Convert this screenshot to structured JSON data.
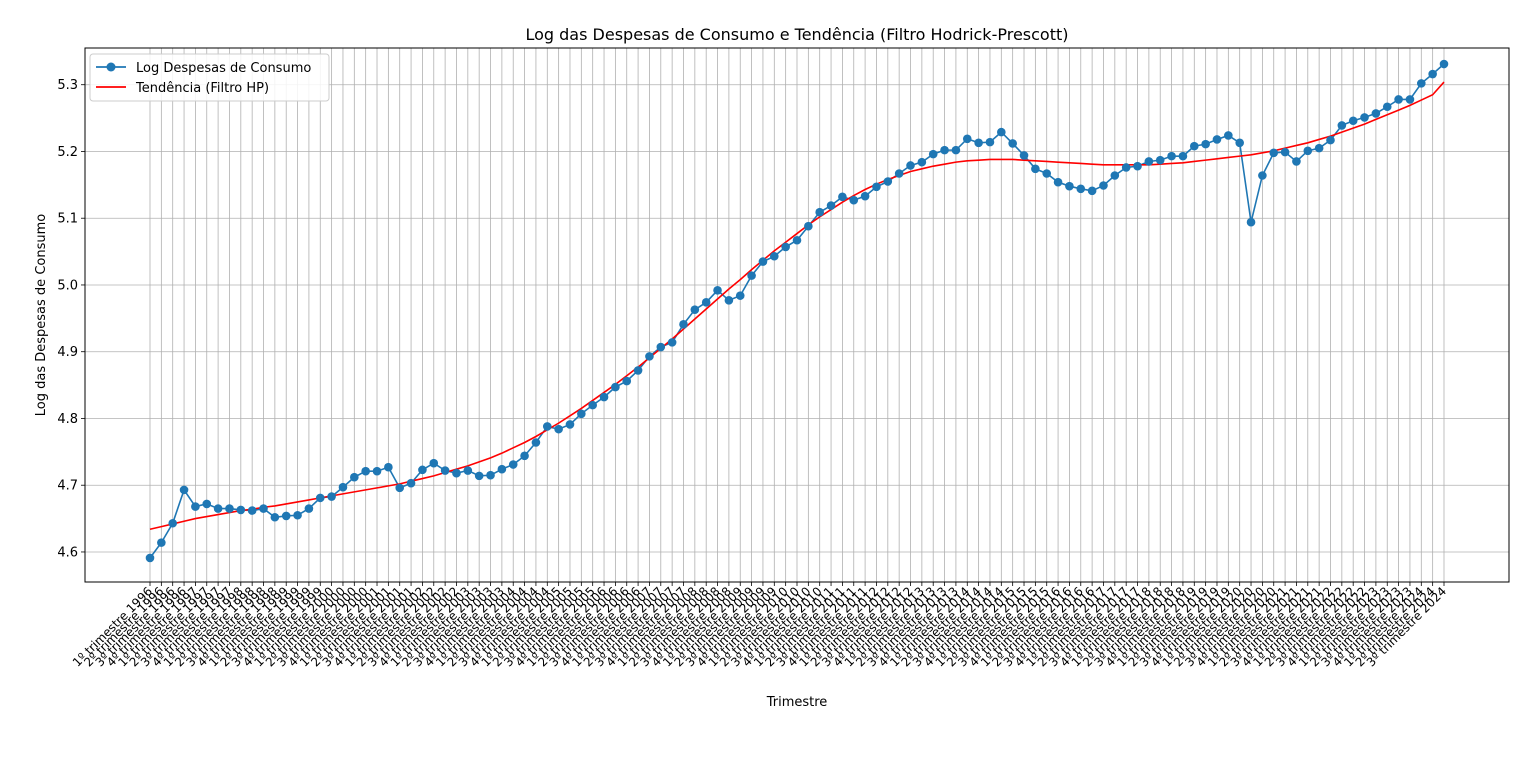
{
  "chart_data": {
    "type": "line",
    "title": "Log das Despesas de Consumo e Tendência (Filtro Hodrick-Prescott)",
    "xlabel": "Trimestre",
    "ylabel": "Log das Despesas de Consumo",
    "ylim": [
      4.555,
      5.355
    ],
    "yticks": [
      4.6,
      4.7,
      4.8,
      4.9,
      5.0,
      5.1,
      5.2,
      5.3
    ],
    "grid": true,
    "legend_position": "top-left",
    "x_start": "1º trimestre 1996",
    "x_end": "3º trimestre 2024",
    "quarter_labels": [
      "1º trimestre",
      "2º trimestre",
      "3º trimestre",
      "4º trimestre"
    ],
    "start_year": 1996,
    "series": [
      {
        "name": "Log Despesas de Consumo",
        "color": "#1f77b4",
        "marker": "circle",
        "values": [
          4.591,
          4.614,
          4.643,
          4.693,
          4.668,
          4.672,
          4.665,
          4.665,
          4.663,
          4.662,
          4.665,
          4.652,
          4.654,
          4.655,
          4.665,
          4.681,
          4.683,
          4.697,
          4.712,
          4.721,
          4.721,
          4.727,
          4.696,
          4.703,
          4.723,
          4.733,
          4.722,
          4.718,
          4.722,
          4.714,
          4.715,
          4.724,
          4.731,
          4.744,
          4.764,
          4.788,
          4.784,
          4.791,
          4.807,
          4.82,
          4.832,
          4.847,
          4.856,
          4.872,
          4.893,
          4.907,
          4.914,
          4.941,
          4.963,
          4.974,
          4.992,
          4.977,
          4.984,
          5.014,
          5.035,
          5.043,
          5.057,
          5.067,
          5.088,
          5.109,
          5.119,
          5.132,
          5.127,
          5.133,
          5.147,
          5.155,
          5.167,
          5.179,
          5.184,
          5.196,
          5.202,
          5.202,
          5.219,
          5.213,
          5.214,
          5.229,
          5.212,
          5.194,
          5.174,
          5.167,
          5.154,
          5.148,
          5.144,
          5.141,
          5.149,
          5.164,
          5.176,
          5.178,
          5.185,
          5.187,
          5.193,
          5.193,
          5.208,
          5.211,
          5.218,
          5.224,
          5.213,
          5.094,
          5.164,
          5.198,
          5.199,
          5.185,
          5.201,
          5.205,
          5.217,
          5.239,
          5.246,
          5.251,
          5.257,
          5.267,
          5.278,
          5.278,
          5.302,
          5.316,
          5.331
        ]
      },
      {
        "name": "Tendência (Filtro HP)",
        "color": "#ff0000",
        "marker": "none",
        "values": [
          4.634,
          4.638,
          4.642,
          4.646,
          4.65,
          4.653,
          4.656,
          4.659,
          4.662,
          4.664,
          4.667,
          4.669,
          4.672,
          4.675,
          4.678,
          4.681,
          4.684,
          4.687,
          4.69,
          4.693,
          4.696,
          4.699,
          4.702,
          4.706,
          4.71,
          4.714,
          4.719,
          4.724,
          4.729,
          4.735,
          4.741,
          4.748,
          4.756,
          4.764,
          4.773,
          4.783,
          4.793,
          4.804,
          4.815,
          4.827,
          4.839,
          4.851,
          4.864,
          4.877,
          4.891,
          4.905,
          4.919,
          4.934,
          4.949,
          4.964,
          4.979,
          4.994,
          5.008,
          5.023,
          5.037,
          5.051,
          5.064,
          5.077,
          5.09,
          5.102,
          5.113,
          5.124,
          5.134,
          5.143,
          5.151,
          5.158,
          5.164,
          5.17,
          5.174,
          5.178,
          5.181,
          5.184,
          5.186,
          5.187,
          5.188,
          5.188,
          5.188,
          5.187,
          5.186,
          5.185,
          5.184,
          5.183,
          5.182,
          5.181,
          5.18,
          5.18,
          5.18,
          5.18,
          5.18,
          5.181,
          5.182,
          5.183,
          5.185,
          5.187,
          5.189,
          5.191,
          5.193,
          5.195,
          5.198,
          5.201,
          5.205,
          5.209,
          5.213,
          5.218,
          5.223,
          5.229,
          5.235,
          5.241,
          5.248,
          5.255,
          5.262,
          5.269,
          5.277,
          5.285,
          5.304
        ]
      }
    ]
  }
}
